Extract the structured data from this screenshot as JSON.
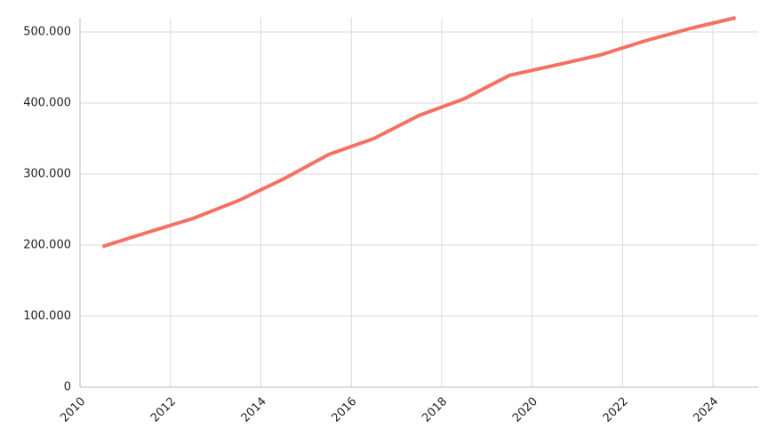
{
  "chart_data": {
    "type": "line",
    "x": [
      2010.5,
      2011.5,
      2012.5,
      2013.5,
      2014.5,
      2015.5,
      2016.5,
      2017.5,
      2018.5,
      2019.5,
      2020.5,
      2021.5,
      2022.5,
      2023.5,
      2024.5
    ],
    "series": [
      {
        "color": "#f57061",
        "values": [
          198000,
          218000,
          237500,
          262500,
          293000,
          327500,
          350000,
          382500,
          406000,
          439000,
          453000,
          467500,
          487500,
          505000,
          520000
        ]
      }
    ],
    "xlim": [
      2010,
      2025
    ],
    "xticks": [
      2010,
      2012,
      2014,
      2016,
      2018,
      2020,
      2022,
      2024
    ],
    "ylim": [
      0,
      520000
    ],
    "yticks": [
      0,
      {
        "value": 100000,
        "label": "100.000"
      },
      {
        "value": 200000,
        "label": "200.000"
      },
      {
        "value": 300000,
        "label": "300.000"
      },
      {
        "value": 400000,
        "label": "400.000"
      },
      {
        "value": 500000,
        "label": "500.000"
      }
    ],
    "grid": true
  }
}
